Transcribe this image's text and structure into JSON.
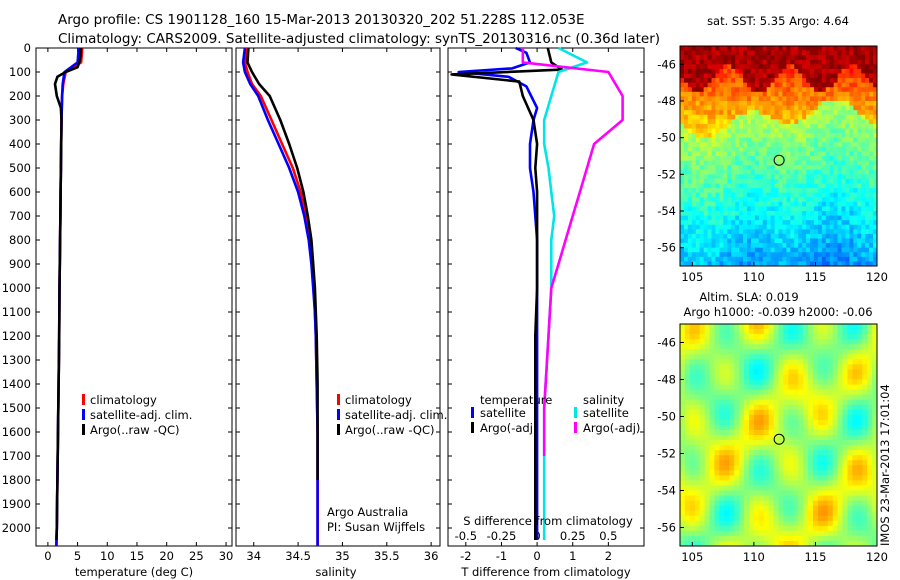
{
  "header": {
    "line1": "Argo profile: CS 1901128_160 15-Mar-2013 20130320_202 51.228S 112.053E",
    "line2": "Climatology: CARS2009. Satellite-adjusted climatology: synTS_20130316.nc (0.36d later)"
  },
  "depth_ticks": [
    "0",
    "100",
    "200",
    "300",
    "400",
    "500",
    "600",
    "700",
    "800",
    "900",
    "1000",
    "1100",
    "1200",
    "1300",
    "1400",
    "1500",
    "1600",
    "1700",
    "1800",
    "1900",
    "2000"
  ],
  "colors": {
    "climatology": "#ff0000",
    "satellite": "#0000ff",
    "argo": "#000000",
    "salinity_satellite": "#00e5e5",
    "salinity_argo": "#ff00ff",
    "sst_low": "#00b4d8",
    "sst_high": "#b01500"
  },
  "chart_data": [
    {
      "type": "line",
      "id": "temperature",
      "xlabel": "temperature (deg C)",
      "ylabel": "",
      "xlim": [
        -2,
        31
      ],
      "ylim": [
        2075,
        0
      ],
      "y_inverted": true,
      "xticks": [
        "0",
        "5",
        "10",
        "15",
        "20",
        "25",
        "30"
      ],
      "legend": [
        "climatology",
        "satellite-adj. clim.",
        "Argo(..raw -QC)"
      ],
      "series": [
        {
          "name": "climatology",
          "color": "#ff0000",
          "x": [
            5.8,
            5.6,
            3.0,
            2.6,
            2.4,
            2.3,
            2.25,
            2.2,
            2.15,
            2.1,
            2.05,
            2.0,
            1.95,
            1.9,
            1.8,
            1.7,
            1.6,
            1.55,
            1.5,
            1.45,
            1.4
          ],
          "y": [
            0,
            60,
            100,
            150,
            200,
            300,
            400,
            500,
            600,
            700,
            800,
            900,
            1000,
            1200,
            1400,
            1600,
            1800,
            1900,
            2000,
            2050,
            2075
          ]
        },
        {
          "name": "satellite-adj. clim.",
          "color": "#0000ff",
          "x": [
            5.2,
            5.0,
            2.8,
            2.5,
            2.4,
            2.3,
            2.25,
            2.2,
            2.15,
            2.1,
            2.05,
            2.0,
            1.95,
            1.9,
            1.8,
            1.7,
            1.6,
            1.55,
            1.5,
            1.45,
            1.45
          ],
          "y": [
            0,
            60,
            100,
            150,
            200,
            300,
            400,
            500,
            600,
            700,
            800,
            900,
            1000,
            1200,
            1400,
            1600,
            1800,
            1900,
            2000,
            2050,
            2075
          ]
        },
        {
          "name": "Argo(..raw -QC)",
          "color": "#000000",
          "x": [
            5.6,
            5.4,
            5.0,
            3.0,
            1.6,
            1.2,
            1.5,
            2.2,
            2.3,
            2.25,
            2.2,
            2.15,
            2.1,
            2.0,
            1.95,
            1.9,
            1.8,
            1.7,
            1.6,
            1.55,
            1.5,
            1.45
          ],
          "y": [
            0,
            50,
            80,
            100,
            120,
            150,
            200,
            250,
            300,
            400,
            500,
            600,
            700,
            900,
            1000,
            1200,
            1400,
            1600,
            1800,
            1900,
            2000,
            2050
          ]
        }
      ]
    },
    {
      "type": "line",
      "id": "salinity",
      "xlabel": "salinity",
      "ylabel": "",
      "xlim": [
        33.8,
        36.1
      ],
      "ylim": [
        2075,
        0
      ],
      "y_inverted": true,
      "xticks": [
        "34",
        "34.5",
        "35",
        "35.5",
        "36"
      ],
      "legend": [
        "climatology",
        "satellite-adj. clim.",
        "Argo(..raw -QC)"
      ],
      "annotation": [
        "Argo Australia",
        "PI: Susan Wijffels"
      ],
      "series": [
        {
          "name": "climatology",
          "color": "#ff0000",
          "x": [
            33.92,
            33.9,
            33.93,
            33.98,
            34.08,
            34.2,
            34.32,
            34.44,
            34.53,
            34.59,
            34.63,
            34.66,
            34.68,
            34.69,
            34.7,
            34.71,
            34.72,
            34.72,
            34.72,
            34.72
          ],
          "y": [
            0,
            60,
            100,
            150,
            200,
            300,
            400,
            500,
            600,
            700,
            800,
            900,
            1000,
            1100,
            1200,
            1400,
            1600,
            1800,
            2000,
            2075
          ]
        },
        {
          "name": "satellite-adj. clim.",
          "color": "#0000ff",
          "x": [
            33.9,
            33.88,
            33.9,
            33.96,
            34.05,
            34.16,
            34.28,
            34.4,
            34.5,
            34.57,
            34.62,
            34.65,
            34.67,
            34.69,
            34.7,
            34.71,
            34.72,
            34.72,
            34.72,
            34.72
          ],
          "y": [
            0,
            60,
            100,
            150,
            200,
            300,
            400,
            500,
            600,
            700,
            800,
            900,
            1000,
            1100,
            1200,
            1400,
            1600,
            1800,
            2000,
            2075
          ]
        },
        {
          "name": "Argo(..raw -QC)",
          "color": "#000000",
          "x": [
            33.94,
            33.93,
            33.98,
            34.06,
            34.18,
            34.3,
            34.4,
            34.49,
            34.56,
            34.61,
            34.65,
            34.67,
            34.69,
            34.7,
            34.71,
            34.72,
            34.72,
            34.72
          ],
          "y": [
            0,
            60,
            100,
            150,
            200,
            300,
            400,
            500,
            600,
            700,
            800,
            900,
            1000,
            1100,
            1200,
            1400,
            1600,
            1800
          ]
        }
      ]
    },
    {
      "type": "line",
      "id": "difference",
      "xlabel": "T difference from climatology",
      "xlabel_top": "S difference from climatology",
      "ylabel": "",
      "xlim": [
        -2.5,
        3.0
      ],
      "ylim": [
        2075,
        0
      ],
      "y_inverted": true,
      "xticks": [
        "-2",
        "-1",
        "0",
        "1",
        "2"
      ],
      "xticks_top": [
        "-0.5",
        "-0.25",
        "0",
        "0.25",
        "0.5"
      ],
      "legend_titles": [
        "temperature",
        "salinity"
      ],
      "legend": [
        "satellite",
        "Argo(-adj)",
        "satellite",
        "Argo(-adj)"
      ],
      "series": [
        {
          "name": "temperature satellite",
          "color": "#0000ff",
          "x": [
            -0.6,
            -0.3,
            -0.2,
            -0.7,
            -2.2,
            -0.8,
            -0.3,
            0.0,
            -0.1,
            -0.2,
            -0.2,
            -0.1,
            -0.05,
            0.0,
            0.0,
            0.0,
            0.0,
            0.0,
            0.0,
            0.0,
            0.0
          ],
          "y": [
            0,
            20,
            60,
            85,
            100,
            120,
            160,
            250,
            300,
            400,
            500,
            600,
            700,
            800,
            900,
            1000,
            1200,
            1500,
            1800,
            2000,
            2050
          ]
        },
        {
          "name": "temperature Argo(-adj)",
          "color": "#000000",
          "x": [
            0.3,
            0.4,
            0.7,
            -2.4,
            -0.5,
            -0.4,
            -0.1,
            0.0,
            -0.05,
            0.0,
            0.0,
            0.0,
            -0.05,
            -0.05,
            -0.05,
            -0.05,
            -0.05
          ],
          "y": [
            0,
            60,
            90,
            110,
            140,
            200,
            300,
            400,
            500,
            600,
            800,
            1000,
            1200,
            1500,
            1800,
            2000,
            2050
          ]
        },
        {
          "name": "salinity satellite",
          "color": "#00e5e5",
          "x": [
            0.15,
            0.35,
            0.15,
            0.1,
            0.05,
            0.05,
            0.08,
            0.1,
            0.12,
            0.1,
            0.1,
            0.1,
            0.08,
            0.05,
            0.05,
            0.05
          ],
          "y": [
            0,
            60,
            100,
            200,
            300,
            400,
            500,
            600,
            700,
            800,
            900,
            1000,
            1200,
            1500,
            1800,
            2050
          ]
        },
        {
          "name": "salinity Argo(-adj)",
          "color": "#ff00ff",
          "x": [
            -0.1,
            -0.1,
            0.5,
            0.6,
            0.6,
            0.4,
            0.35,
            0.3,
            0.25,
            0.2,
            0.15,
            0.1,
            0.08,
            0.05,
            0.05
          ],
          "y": [
            0,
            60,
            100,
            200,
            300,
            400,
            500,
            600,
            700,
            800,
            900,
            1000,
            1200,
            1500,
            1700
          ]
        }
      ]
    },
    {
      "type": "heatmap",
      "id": "sst_map",
      "title": "sat. SST: 5.35 Argo: 4.64",
      "xticks": [
        "105",
        "110",
        "115",
        "120"
      ],
      "yticks": [
        "-46",
        "-48",
        "-50",
        "-52",
        "-54",
        "-56"
      ],
      "xlim": [
        104,
        120
      ],
      "ylim": [
        -57,
        -45
      ],
      "marker": {
        "lon": 112.05,
        "lat": -51.23
      }
    },
    {
      "type": "heatmap",
      "id": "sla_map",
      "title_lines": [
        "Altim. SLA: 0.019",
        "Argo h1000: -0.039 h2000: -0.06"
      ],
      "side_label": "IMOS 23-Mar-2013 17:01:04",
      "xticks": [
        "105",
        "110",
        "115",
        "120"
      ],
      "yticks": [
        "-46",
        "-48",
        "-50",
        "-52",
        "-54",
        "-56"
      ],
      "xlim": [
        104,
        120
      ],
      "ylim": [
        -57,
        -45
      ],
      "marker": {
        "lon": 112.05,
        "lat": -51.23
      }
    }
  ]
}
